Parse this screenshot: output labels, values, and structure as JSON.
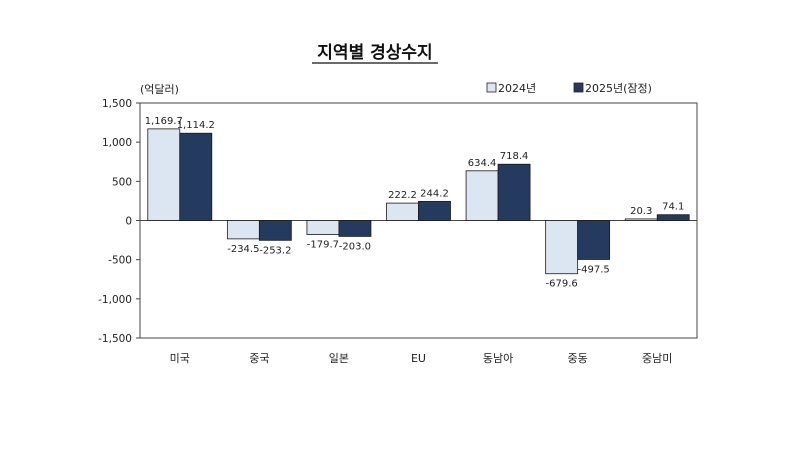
{
  "chart_data": {
    "type": "bar",
    "title": "지역별 경상수지",
    "unit_label": "(억달러)",
    "categories": [
      "미국",
      "중국",
      "일본",
      "EU",
      "동남아",
      "중동",
      "중남미"
    ],
    "series": [
      {
        "name": "2024년",
        "color": "#dce5f2",
        "values": [
          1169.7,
          -234.5,
          -179.7,
          222.2,
          634.4,
          -679.6,
          20.3
        ],
        "labels": [
          "1,169.7",
          "-234.5",
          "-179.7",
          "222.2",
          "634.4",
          "-679.6",
          "20.3"
        ]
      },
      {
        "name": "2025년(잠정)",
        "color": "#243a5e",
        "values": [
          1114.2,
          -253.2,
          -203.0,
          244.2,
          718.4,
          -497.5,
          74.1
        ],
        "labels": [
          "1,114.2",
          "-253.2",
          "-203.0",
          "244.2",
          "718.4",
          "-497.5",
          "74.1"
        ]
      }
    ],
    "ylim": [
      -1500,
      1500
    ],
    "yticks": [
      1500,
      1000,
      500,
      0,
      -500,
      -1000,
      -1500
    ],
    "ytick_labels": [
      "1,500",
      "1,000",
      "500",
      "0",
      "-500",
      "-1,000",
      "-1,500"
    ],
    "legend_position": "top-right",
    "grid": false
  }
}
